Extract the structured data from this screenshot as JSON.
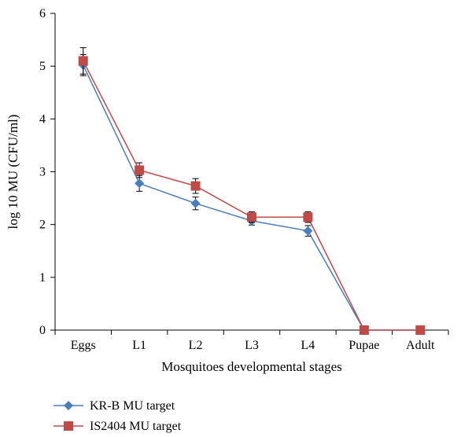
{
  "chart_data": {
    "type": "line",
    "xlabel": "Mosquitoes developmental stages",
    "ylabel": "log 10 MU (CFU/ml)",
    "categories": [
      "Eggs",
      "L1",
      "L2",
      "L3",
      "L4",
      "Pupae",
      "Adult"
    ],
    "ylim": [
      0,
      6
    ],
    "yticks": [
      "0",
      "1",
      "2",
      "3",
      "4",
      "5",
      "6"
    ],
    "grid": false,
    "legend_position": "bottom-left",
    "series": [
      {
        "name": "KR-B MU target",
        "values": [
          5.02,
          2.78,
          2.4,
          2.07,
          1.88,
          0,
          0
        ],
        "errors": [
          0.2,
          0.15,
          0.12,
          0.08,
          0.1,
          0,
          0
        ],
        "color": "#4a7ebb",
        "marker": "diamond"
      },
      {
        "name": "IS2404 MU target",
        "values": [
          5.1,
          3.03,
          2.73,
          2.14,
          2.14,
          0,
          0
        ],
        "errors": [
          0.25,
          0.14,
          0.14,
          0.1,
          0.1,
          0,
          0
        ],
        "color": "#be4b48",
        "marker": "square"
      }
    ]
  }
}
